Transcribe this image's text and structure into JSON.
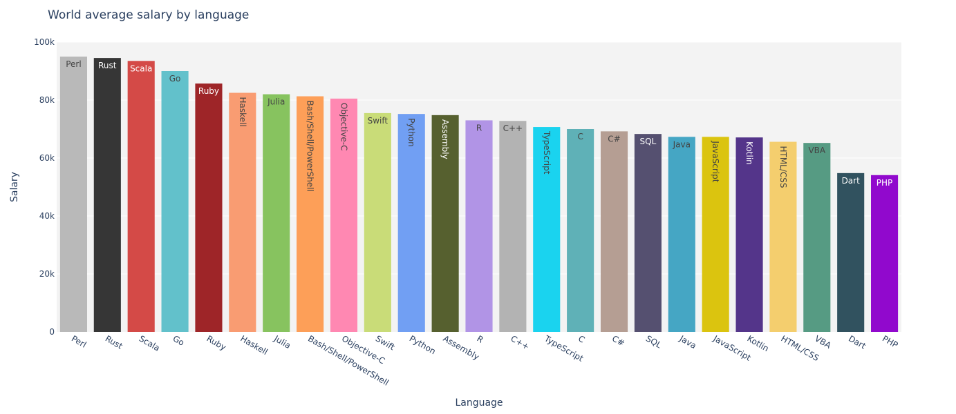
{
  "chart_data": {
    "type": "bar",
    "title": "World average salary by language",
    "xlabel": "Language",
    "ylabel": "Salary",
    "ylim": [
      0,
      100000
    ],
    "yticks": [
      0,
      20000,
      40000,
      60000,
      80000,
      100000
    ],
    "ytick_labels": [
      "0",
      "20k",
      "40k",
      "60k",
      "80k",
      "100k"
    ],
    "plot_background": "#f3f3f3",
    "grid": true,
    "legend": false,
    "categories": [
      "Perl",
      "Rust",
      "Scala",
      "Go",
      "Ruby",
      "Haskell",
      "Julia",
      "Bash/Shell/PowerShell",
      "Objective-C",
      "Swift",
      "Python",
      "Assembly",
      "R",
      "C++",
      "TypeScript",
      "C",
      "C#",
      "SQL",
      "Java",
      "JavaScript",
      "Kotlin",
      "HTML/CSS",
      "VBA",
      "Dart",
      "PHP"
    ],
    "values": [
      95000,
      94500,
      93500,
      90000,
      85700,
      82500,
      82000,
      81300,
      80500,
      75500,
      75200,
      74800,
      73000,
      72800,
      70700,
      70000,
      69200,
      68300,
      67300,
      67300,
      67100,
      65600,
      65200,
      54800,
      54100
    ],
    "colors": [
      "#b9b9b9",
      "#363636",
      "#d44a47",
      "#62c1cb",
      "#9e2528",
      "#f99c72",
      "#87c35f",
      "#fd9f58",
      "#ff88b2",
      "#c9dc78",
      "#719ff3",
      "#56602f",
      "#b194e6",
      "#b3b3b3",
      "#1ad3ef",
      "#5fb1b7",
      "#b59e93",
      "#555070",
      "#45a6c4",
      "#dbc40f",
      "#54358a",
      "#f4ce6e",
      "#569b83",
      "#31525f",
      "#9109cd"
    ],
    "label_colors": [
      "#444444",
      "#ffffff",
      "#ffffff",
      "#444444",
      "#ffffff",
      "#444444",
      "#444444",
      "#444444",
      "#444444",
      "#444444",
      "#444444",
      "#ffffff",
      "#444444",
      "#444444",
      "#444444",
      "#444444",
      "#444444",
      "#ffffff",
      "#444444",
      "#444444",
      "#ffffff",
      "#444444",
      "#444444",
      "#ffffff",
      "#ffffff"
    ],
    "label_rotated": [
      false,
      false,
      false,
      false,
      false,
      true,
      false,
      true,
      true,
      false,
      true,
      true,
      false,
      false,
      true,
      false,
      false,
      false,
      false,
      true,
      true,
      true,
      false,
      false,
      false
    ]
  }
}
